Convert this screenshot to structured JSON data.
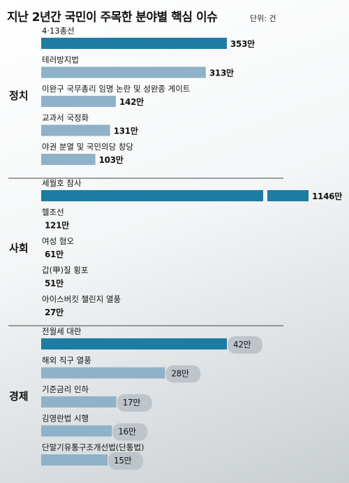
{
  "title": "지난 2년간 국민이 주목한 분야별 핵심 이슈",
  "unit": "단위: 건",
  "chart_data": {
    "type": "bar",
    "orientation": "horizontal",
    "title": "지난 2년간 국민이 주목한 분야별 핵심 이슈",
    "unit": "단위: 건",
    "colors": {
      "highlight": "#1d7ca3",
      "normal": "#8fb2c8"
    },
    "groups": [
      {
        "name": "정치",
        "items": [
          {
            "label": "4·13총선",
            "value": 353,
            "value_label": "353만",
            "highlight": true
          },
          {
            "label": "테러방지법",
            "value": 313,
            "value_label": "313만",
            "highlight": false
          },
          {
            "label": "이완구 국무총리 임명 논란 및 성완종 게이트",
            "value": 142,
            "value_label": "142만",
            "highlight": false
          },
          {
            "label": "교과서 국정화",
            "value": 131,
            "value_label": "131만",
            "highlight": false
          },
          {
            "label": "야권 분열 및 국민의당 창당",
            "value": 103,
            "value_label": "103만",
            "highlight": false
          }
        ]
      },
      {
        "name": "사회",
        "items": [
          {
            "label": "세월호 참사",
            "value": 1146,
            "value_label": "1146만",
            "highlight": true,
            "broken": true
          },
          {
            "label": "헬조선",
            "value": 121,
            "value_label": "121만",
            "highlight": false
          },
          {
            "label": "여성 혐오",
            "value": 61,
            "value_label": "61만",
            "highlight": false
          },
          {
            "label": "갑(甲)질 횡포",
            "value": 51,
            "value_label": "51만",
            "highlight": false
          },
          {
            "label": "아이스버킷 챌린지 열풍",
            "value": 27,
            "value_label": "27만",
            "highlight": false
          }
        ]
      },
      {
        "name": "경제",
        "items": [
          {
            "label": "전월세 대란",
            "value": 42,
            "value_label": "42만",
            "highlight": true
          },
          {
            "label": "해외 직구 열풍",
            "value": 28,
            "value_label": "28만",
            "highlight": false
          },
          {
            "label": "기준금리 인하",
            "value": 17,
            "value_label": "17만",
            "highlight": false
          },
          {
            "label": "김영란법 시행",
            "value": 16,
            "value_label": "16만",
            "highlight": false
          },
          {
            "label": "단말기유통구조개선법(단통법)",
            "value": 15,
            "value_label": "15만",
            "highlight": false
          }
        ]
      }
    ]
  }
}
